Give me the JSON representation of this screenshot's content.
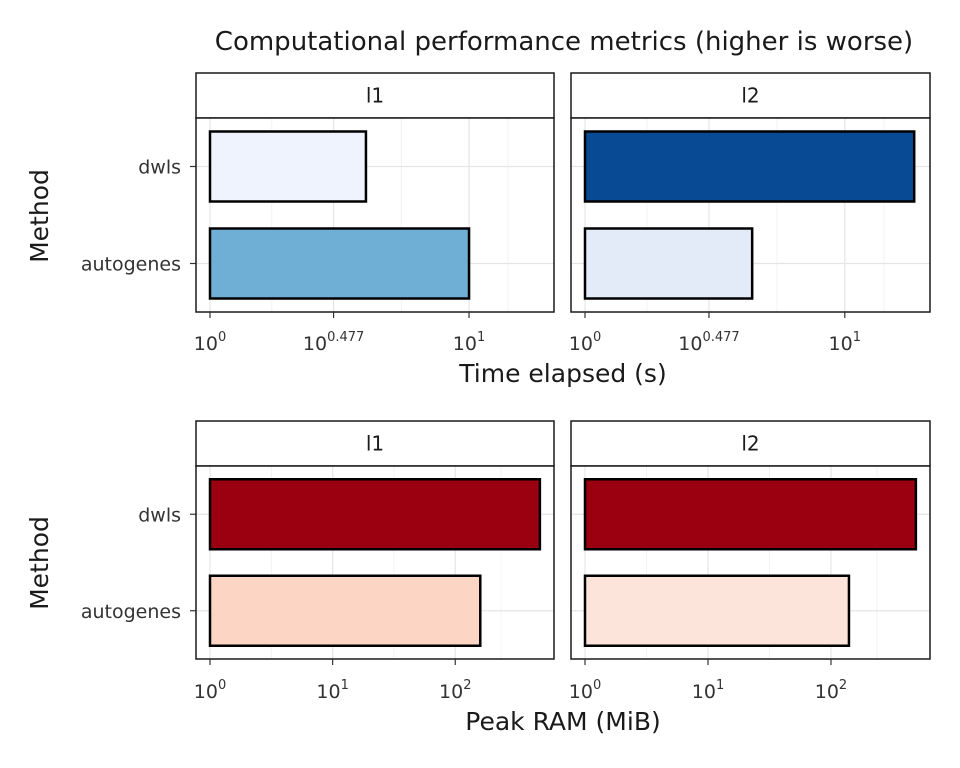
{
  "title": "Computational performance metrics (higher is worse)",
  "chart_data": [
    {
      "type": "bar",
      "orientation": "horizontal",
      "metric": "time",
      "xlabel": "Time elapsed (s)",
      "ylabel": "Method",
      "x_scale": "log10",
      "xlim": [
        1,
        20
      ],
      "x_ticks": [
        {
          "base": "10",
          "exp": "0",
          "value": 1
        },
        {
          "base": "10",
          "exp": "0.477",
          "value": 3
        },
        {
          "base": "10",
          "exp": "1",
          "value": 10
        }
      ],
      "categories": [
        "dwls",
        "autogenes"
      ],
      "grid": true,
      "facets": [
        {
          "label": "l1",
          "values": [
            4.0,
            10.0
          ],
          "colors": [
            "#eef3fe",
            "#6fafd6"
          ]
        },
        {
          "label": "l2",
          "values": [
            18.5,
            4.4
          ],
          "colors": [
            "#084a94",
            "#e3ebf8"
          ]
        }
      ]
    },
    {
      "type": "bar",
      "orientation": "horizontal",
      "metric": "memory",
      "xlabel": "Peak RAM (MiB)",
      "ylabel": "Method",
      "x_scale": "log10",
      "xlim": [
        1,
        560
      ],
      "x_ticks": [
        {
          "base": "10",
          "exp": "0",
          "value": 1
        },
        {
          "base": "10",
          "exp": "1",
          "value": 10
        },
        {
          "base": "10",
          "exp": "2",
          "value": 100
        }
      ],
      "categories": [
        "dwls",
        "autogenes"
      ],
      "grid": true,
      "facets": [
        {
          "label": "l1",
          "values": [
            490,
            160
          ],
          "colors": [
            "#9b0010",
            "#fdd5c5"
          ]
        },
        {
          "label": "l2",
          "values": [
            490,
            140
          ],
          "colors": [
            "#9b0010",
            "#fde4da"
          ]
        }
      ]
    }
  ]
}
